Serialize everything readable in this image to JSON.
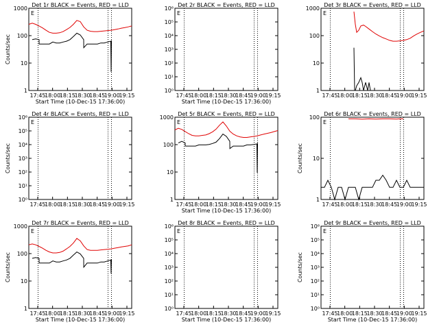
{
  "colors": {
    "events": "#000000",
    "lld": "#e00000",
    "axes": "#000000",
    "background": "#ffffff"
  },
  "chart_data": [
    {
      "type": "line",
      "title": "Det 1r BLACK = Events, RED = LLD",
      "ylabel": "Counts/sec",
      "xlabel": "Start Time (10-Dec-15 17:36:00)",
      "x_tick_labels": [
        "17:45",
        "18:00",
        "18:15",
        "18:30",
        "18:45",
        "19:00",
        "19:15"
      ],
      "y_tick_labels": [
        "1",
        "10",
        "100",
        "1000"
      ],
      "ylim": [
        1,
        1200
      ],
      "yscale": "log",
      "vlines_minutes": [
        13.5,
        115.5,
        120.5
      ],
      "series": [
        {
          "name": "LLD",
          "color": "red",
          "x": [
            0,
            5,
            10,
            15,
            20,
            25,
            30,
            35,
            40,
            45,
            50,
            55,
            60,
            65,
            70,
            75,
            80,
            85,
            90,
            95,
            100,
            105,
            110,
            115,
            120,
            125,
            130,
            135,
            140,
            145,
            150
          ],
          "values": [
            300,
            330,
            300,
            260,
            220,
            180,
            150,
            140,
            140,
            145,
            160,
            190,
            230,
            300,
            420,
            380,
            240,
            180,
            165,
            160,
            160,
            165,
            170,
            175,
            180,
            190,
            200,
            215,
            225,
            240,
            260
          ]
        },
        {
          "name": "Events",
          "color": "black",
          "x": [
            5,
            10,
            15,
            15.1,
            20,
            25,
            30,
            35,
            40,
            45,
            50,
            55,
            60,
            65,
            70,
            75,
            80,
            80.1,
            85,
            90,
            95,
            100,
            105,
            110,
            115,
            119.5,
            120,
            120.5
          ],
          "values": [
            80,
            85,
            80,
            55,
            55,
            55,
            55,
            65,
            60,
            60,
            65,
            70,
            80,
            105,
            140,
            120,
            80,
            40,
            55,
            55,
            55,
            55,
            60,
            60,
            65,
            70,
            5,
            75
          ]
        }
      ]
    },
    {
      "type": "line",
      "title": "Det 2r BLACK = Events, RED = LLD",
      "ylabel": "",
      "xlabel": "Start Time (10-Dec-15 17:36:00)",
      "x_tick_labels": [
        "17:45",
        "18:00",
        "18:15",
        "18:30",
        "18:45",
        "19:00",
        "19:15"
      ],
      "y_tick_labels": [
        "10⁰",
        "10¹",
        "10²",
        "10³",
        "10⁴",
        "10⁵",
        "10⁶"
      ],
      "ylim": [
        1,
        1000000
      ],
      "yscale": "log",
      "vlines_minutes": [
        13.5,
        115.5,
        120.5
      ],
      "series": []
    },
    {
      "type": "line",
      "title": "Det 3r BLACK = Events, RED = LLD",
      "ylabel": "",
      "xlabel": "",
      "x_tick_labels": [
        "17:45",
        "18:00",
        "18:15",
        "18:30",
        "18:45",
        "19:00",
        "19:15"
      ],
      "y_tick_labels": [
        "1",
        "10",
        "100",
        "1000"
      ],
      "ylim": [
        1,
        1200
      ],
      "yscale": "log",
      "vlines_minutes": [
        13.5,
        115.5,
        120.5
      ],
      "series": [
        {
          "name": "LLD",
          "color": "red",
          "x": [
            48,
            50,
            52,
            55,
            58,
            62,
            65,
            70,
            75,
            80,
            85,
            90,
            95,
            100,
            105,
            110,
            115,
            120,
            125,
            130,
            135,
            140,
            145,
            150
          ],
          "values": [
            900,
            300,
            150,
            180,
            260,
            280,
            250,
            200,
            160,
            130,
            110,
            95,
            85,
            75,
            70,
            70,
            72,
            75,
            80,
            90,
            110,
            130,
            150,
            170
          ]
        },
        {
          "name": "Events",
          "color": "black",
          "x": [
            48,
            49,
            50,
            52,
            55,
            58,
            60,
            62,
            65,
            68,
            70,
            72,
            75
          ],
          "values": [
            40,
            1,
            1,
            1.5,
            2,
            3,
            2,
            1,
            2,
            1,
            2,
            1,
            1
          ]
        }
      ]
    },
    {
      "type": "line",
      "title": "Det 4r BLACK = Events, RED = LLD",
      "ylabel": "Counts/sec",
      "xlabel": "",
      "x_tick_labels": [
        "17:45",
        "18:00",
        "18:15",
        "18:30",
        "18:45",
        "19:00",
        "19:15"
      ],
      "y_tick_labels": [
        "10⁰",
        "10¹",
        "10²",
        "10³",
        "10⁴",
        "10⁵",
        "10⁶"
      ],
      "ylim": [
        1,
        1000000
      ],
      "yscale": "log",
      "vlines_minutes": [
        13.5,
        115.5,
        120.5
      ],
      "series": []
    },
    {
      "type": "line",
      "title": "Det 5r BLACK = Events, RED = LLD",
      "ylabel": "",
      "xlabel": "Start Time (10-Dec-15 17:36:00)",
      "x_tick_labels": [
        "17:45",
        "18:00",
        "18:15",
        "18:30",
        "18:45",
        "19:00",
        "19:15"
      ],
      "y_tick_labels": [
        "1",
        "10",
        "100",
        "1000"
      ],
      "ylim": [
        1,
        1200
      ],
      "yscale": "log",
      "vlines_minutes": [
        13.5,
        115.5,
        120.5
      ],
      "series": [
        {
          "name": "LLD",
          "color": "red",
          "x": [
            0,
            5,
            10,
            15,
            20,
            25,
            30,
            35,
            40,
            45,
            50,
            55,
            60,
            65,
            70,
            75,
            80,
            85,
            90,
            95,
            100,
            105,
            110,
            115,
            120,
            125,
            130,
            135,
            140,
            145,
            150
          ],
          "values": [
            400,
            460,
            420,
            350,
            290,
            250,
            240,
            240,
            250,
            260,
            290,
            340,
            430,
            600,
            800,
            560,
            360,
            280,
            240,
            220,
            210,
            210,
            220,
            230,
            240,
            260,
            280,
            300,
            320,
            350,
            380
          ]
        },
        {
          "name": "Events",
          "color": "black",
          "x": [
            5,
            10,
            15,
            15.1,
            20,
            25,
            30,
            35,
            40,
            45,
            50,
            55,
            60,
            65,
            70,
            75,
            80,
            80.1,
            85,
            90,
            95,
            100,
            105,
            110,
            115,
            119.5,
            120,
            120.5
          ],
          "values": [
            130,
            150,
            130,
            100,
            100,
            100,
            100,
            110,
            110,
            110,
            115,
            125,
            140,
            190,
            280,
            230,
            150,
            80,
            100,
            100,
            100,
            100,
            110,
            110,
            115,
            120,
            10,
            130
          ]
        }
      ]
    },
    {
      "type": "line",
      "title": "Det 6r BLACK = Events, RED = LLD",
      "ylabel": "Counts/sec",
      "xlabel": "",
      "x_tick_labels": [
        "17:45",
        "18:00",
        "18:15",
        "18:30",
        "18:45",
        "19:00",
        "19:15"
      ],
      "y_tick_labels": [
        "1",
        "10",
        "100"
      ],
      "ylim": [
        1,
        110
      ],
      "yscale": "log",
      "vlines_minutes": [
        13.5,
        115.5,
        120.5
      ],
      "series": [
        {
          "name": "LLD",
          "color": "red",
          "x": [
            40,
            50,
            60,
            70,
            80,
            90,
            100,
            110,
            115,
            120
          ],
          "values": [
            100,
            100,
            98,
            100,
            99,
            100,
            100,
            99,
            100,
            100
          ]
        },
        {
          "name": "Events",
          "color": "black",
          "x": [
            0,
            5,
            10,
            15,
            20,
            25,
            30,
            35,
            40,
            45,
            50,
            55,
            60,
            65,
            70,
            75,
            80,
            85,
            90,
            95,
            100,
            105,
            110,
            115,
            120,
            125,
            130,
            135,
            140,
            145,
            150
          ],
          "values": [
            2,
            2,
            3,
            2,
            1,
            2,
            2,
            1,
            2,
            2,
            2,
            1,
            2,
            2,
            2,
            2,
            3,
            3,
            4,
            3,
            2,
            2,
            3,
            2,
            2,
            3,
            2,
            2,
            2,
            2,
            2
          ]
        }
      ]
    },
    {
      "type": "line",
      "title": "Det 7r BLACK = Events, RED = LLD",
      "ylabel": "Counts/sec",
      "xlabel": "Start Time (10-Dec-15 17:36:00)",
      "x_tick_labels": [
        "17:45",
        "18:00",
        "18:15",
        "18:30",
        "18:45",
        "19:00",
        "19:15"
      ],
      "y_tick_labels": [
        "1",
        "10",
        "100",
        "1000"
      ],
      "ylim": [
        1,
        1200
      ],
      "yscale": "log",
      "vlines_minutes": [
        13.5,
        115.5,
        120.5
      ],
      "series": [
        {
          "name": "LLD",
          "color": "red",
          "x": [
            0,
            5,
            10,
            15,
            20,
            25,
            30,
            35,
            40,
            45,
            50,
            55,
            60,
            65,
            70,
            75,
            80,
            85,
            90,
            95,
            100,
            105,
            110,
            115,
            120,
            125,
            130,
            135,
            140,
            145,
            150
          ],
          "values": [
            240,
            260,
            240,
            210,
            180,
            150,
            130,
            120,
            120,
            125,
            140,
            170,
            210,
            280,
            420,
            340,
            220,
            160,
            150,
            150,
            150,
            155,
            160,
            165,
            170,
            180,
            190,
            200,
            210,
            220,
            240
          ]
        },
        {
          "name": "Events",
          "color": "black",
          "x": [
            5,
            10,
            15,
            15.1,
            20,
            25,
            30,
            35,
            40,
            45,
            50,
            55,
            60,
            65,
            70,
            75,
            80,
            80.1,
            85,
            90,
            95,
            100,
            105,
            110,
            115,
            119.5,
            120,
            120.5
          ],
          "values": [
            75,
            80,
            75,
            50,
            50,
            50,
            50,
            60,
            55,
            55,
            60,
            65,
            75,
            100,
            130,
            110,
            75,
            35,
            50,
            50,
            50,
            50,
            55,
            55,
            60,
            65,
            20,
            70
          ]
        }
      ]
    },
    {
      "type": "line",
      "title": "Det 8r BLACK = Events, RED = LLD",
      "ylabel": "",
      "xlabel": "Start Time (10-Dec-15 17:36:00)",
      "x_tick_labels": [
        "17:45",
        "18:00",
        "18:15",
        "18:30",
        "18:45",
        "19:00",
        "19:15"
      ],
      "y_tick_labels": [
        "10⁰",
        "10¹",
        "10²",
        "10³",
        "10⁴",
        "10⁵",
        "10⁶"
      ],
      "ylim": [
        1,
        1000000
      ],
      "yscale": "log",
      "vlines_minutes": [
        13.5,
        115.5,
        120.5
      ],
      "series": []
    },
    {
      "type": "line",
      "title": "Det 9r BLACK = Events, RED = LLD",
      "ylabel": "Counts/sec",
      "xlabel": "Start Time (10-Dec-15 17:36:00)",
      "x_tick_labels": [
        "17:45",
        "18:00",
        "18:15",
        "18:30",
        "18:45",
        "19:00",
        "19:15"
      ],
      "y_tick_labels": [
        "10⁰",
        "10¹",
        "10²",
        "10³",
        "10⁴",
        "10⁵",
        "10⁶"
      ],
      "ylim": [
        1,
        1000000
      ],
      "yscale": "log",
      "vlines_minutes": [
        13.5,
        115.5,
        120.5
      ],
      "series": []
    }
  ]
}
